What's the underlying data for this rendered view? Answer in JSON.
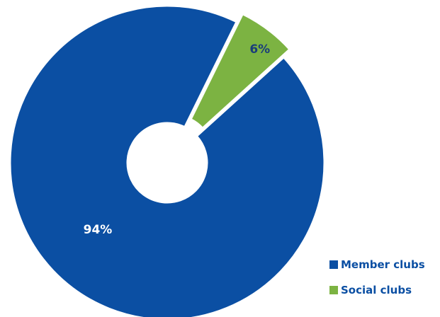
{
  "chart_data": {
    "type": "pie",
    "donut": true,
    "slices": [
      {
        "name": "Member clubs",
        "value": 94,
        "label": "94%",
        "color": "#0b4fa3",
        "label_color": "#ffffff",
        "exploded": false
      },
      {
        "name": "Social clubs",
        "value": 6,
        "label": "6%",
        "color": "#7cb342",
        "label_color": "#1a3d7a",
        "exploded": true
      }
    ],
    "legend": {
      "placement": "bottom-right",
      "items": [
        {
          "label": "Member clubs",
          "color": "#0b4fa3"
        },
        {
          "label": "Social clubs",
          "color": "#7cb342"
        }
      ]
    }
  }
}
